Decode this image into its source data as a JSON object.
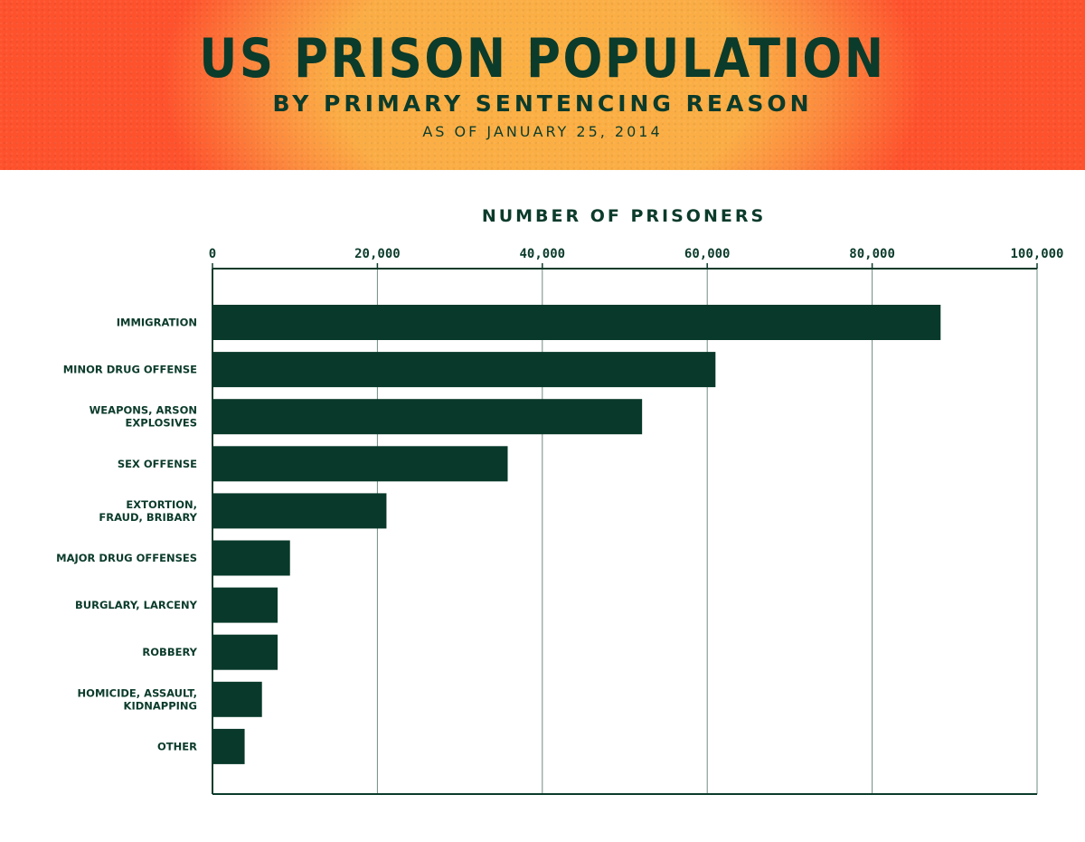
{
  "header": {
    "title": "US PRISON POPULATION",
    "subtitle": "BY PRIMARY SENTENCING REASON",
    "date": "AS OF JANUARY 25, 2014"
  },
  "colors": {
    "bar": "#08392a",
    "grid": "#6f8b80",
    "text": "#0b3b2b",
    "header_center": "#fbb044",
    "header_edge": "#fe522d"
  },
  "chart_data": {
    "type": "bar",
    "orientation": "horizontal",
    "title": "US PRISON POPULATION",
    "xlabel": "NUMBER OF PRISONERS",
    "ylabel": "",
    "xlim": [
      0,
      100000
    ],
    "grid": true,
    "ticks": [
      {
        "value": 0,
        "label": "0"
      },
      {
        "value": 20000,
        "label": "20,000"
      },
      {
        "value": 40000,
        "label": "40,000"
      },
      {
        "value": 60000,
        "label": "60,000"
      },
      {
        "value": 80000,
        "label": "80,000"
      },
      {
        "value": 100000,
        "label": "100,000"
      }
    ],
    "categories": [
      [
        "IMMIGRATION"
      ],
      [
        "MINOR DRUG OFFENSE"
      ],
      [
        "WEAPONS, ARSON",
        "EXPLOSIVES"
      ],
      [
        "SEX OFFENSE"
      ],
      [
        "EXTORTION,",
        "FRAUD, BRIBARY"
      ],
      [
        "MAJOR DRUG OFFENSES"
      ],
      [
        "BURGLARY, LARCENY"
      ],
      [
        "ROBBERY"
      ],
      [
        "HOMICIDE, ASSAULT,",
        "KIDNAPPING"
      ],
      [
        "OTHER"
      ]
    ],
    "values": [
      88300,
      61000,
      52100,
      35800,
      21100,
      9400,
      7900,
      7900,
      6000,
      3900
    ]
  }
}
